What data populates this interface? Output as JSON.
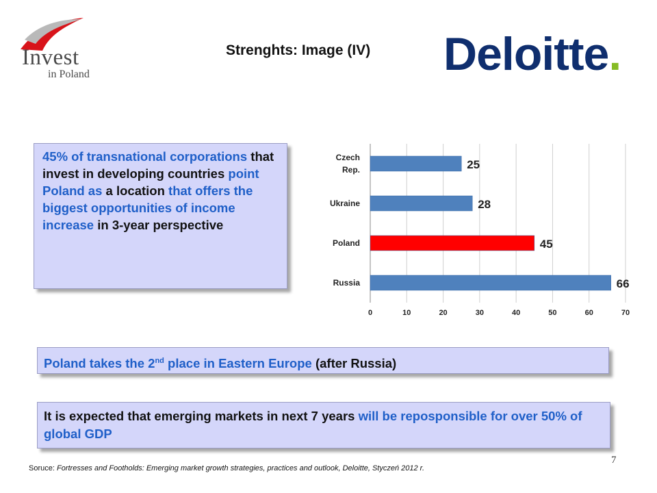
{
  "header": {
    "logo_text": "Invest",
    "logo_sub": "in Poland",
    "title": "Strenghts: Image (IV)",
    "brand": "Deloitte",
    "brand_dot": "."
  },
  "box_main": {
    "parts": [
      {
        "text": "45% of transnational corporations ",
        "style": "blue"
      },
      {
        "text": "that invest in developing countries ",
        "style": "black"
      },
      {
        "text": "point Poland as ",
        "style": "blue"
      },
      {
        "text": "a location ",
        "style": "black"
      },
      {
        "text": "that offers the biggest opportunities of income increase ",
        "style": "blue"
      },
      {
        "text": "in 3-year perspective",
        "style": "black"
      }
    ]
  },
  "box_rank": {
    "part1": "Poland takes the 2",
    "sup": "nd",
    "part2": " place in Eastern Europe ",
    "part3": "(after Russia)"
  },
  "box_gdp": {
    "part1": "It is expected that emerging markets in next 7 years ",
    "part2": "will be reposponsible for over 50% of global GDP"
  },
  "chart_data": {
    "type": "bar",
    "orientation": "horizontal",
    "categories": [
      "Czech Rep.",
      "Ukraine",
      "Poland",
      "Russia"
    ],
    "category_lines": [
      [
        "Czech",
        "Rep."
      ],
      [
        "Ukraine"
      ],
      [
        "Poland"
      ],
      [
        "Russia"
      ]
    ],
    "values": [
      25,
      28,
      45,
      66
    ],
    "colors": [
      "#4f81bd",
      "#4f81bd",
      "#ff0000",
      "#4f81bd"
    ],
    "xlim": [
      0,
      70
    ],
    "xticks": [
      0,
      10,
      20,
      30,
      40,
      50,
      60,
      70
    ],
    "grid": true,
    "data_labels": true
  },
  "footer": {
    "source_label": "Soruce:",
    "source_text": " Fortresses and Footholds: Emerging market growth strategies, practices and outlook, Deloitte, Styczeń 2012 r.",
    "page_number": "7"
  }
}
